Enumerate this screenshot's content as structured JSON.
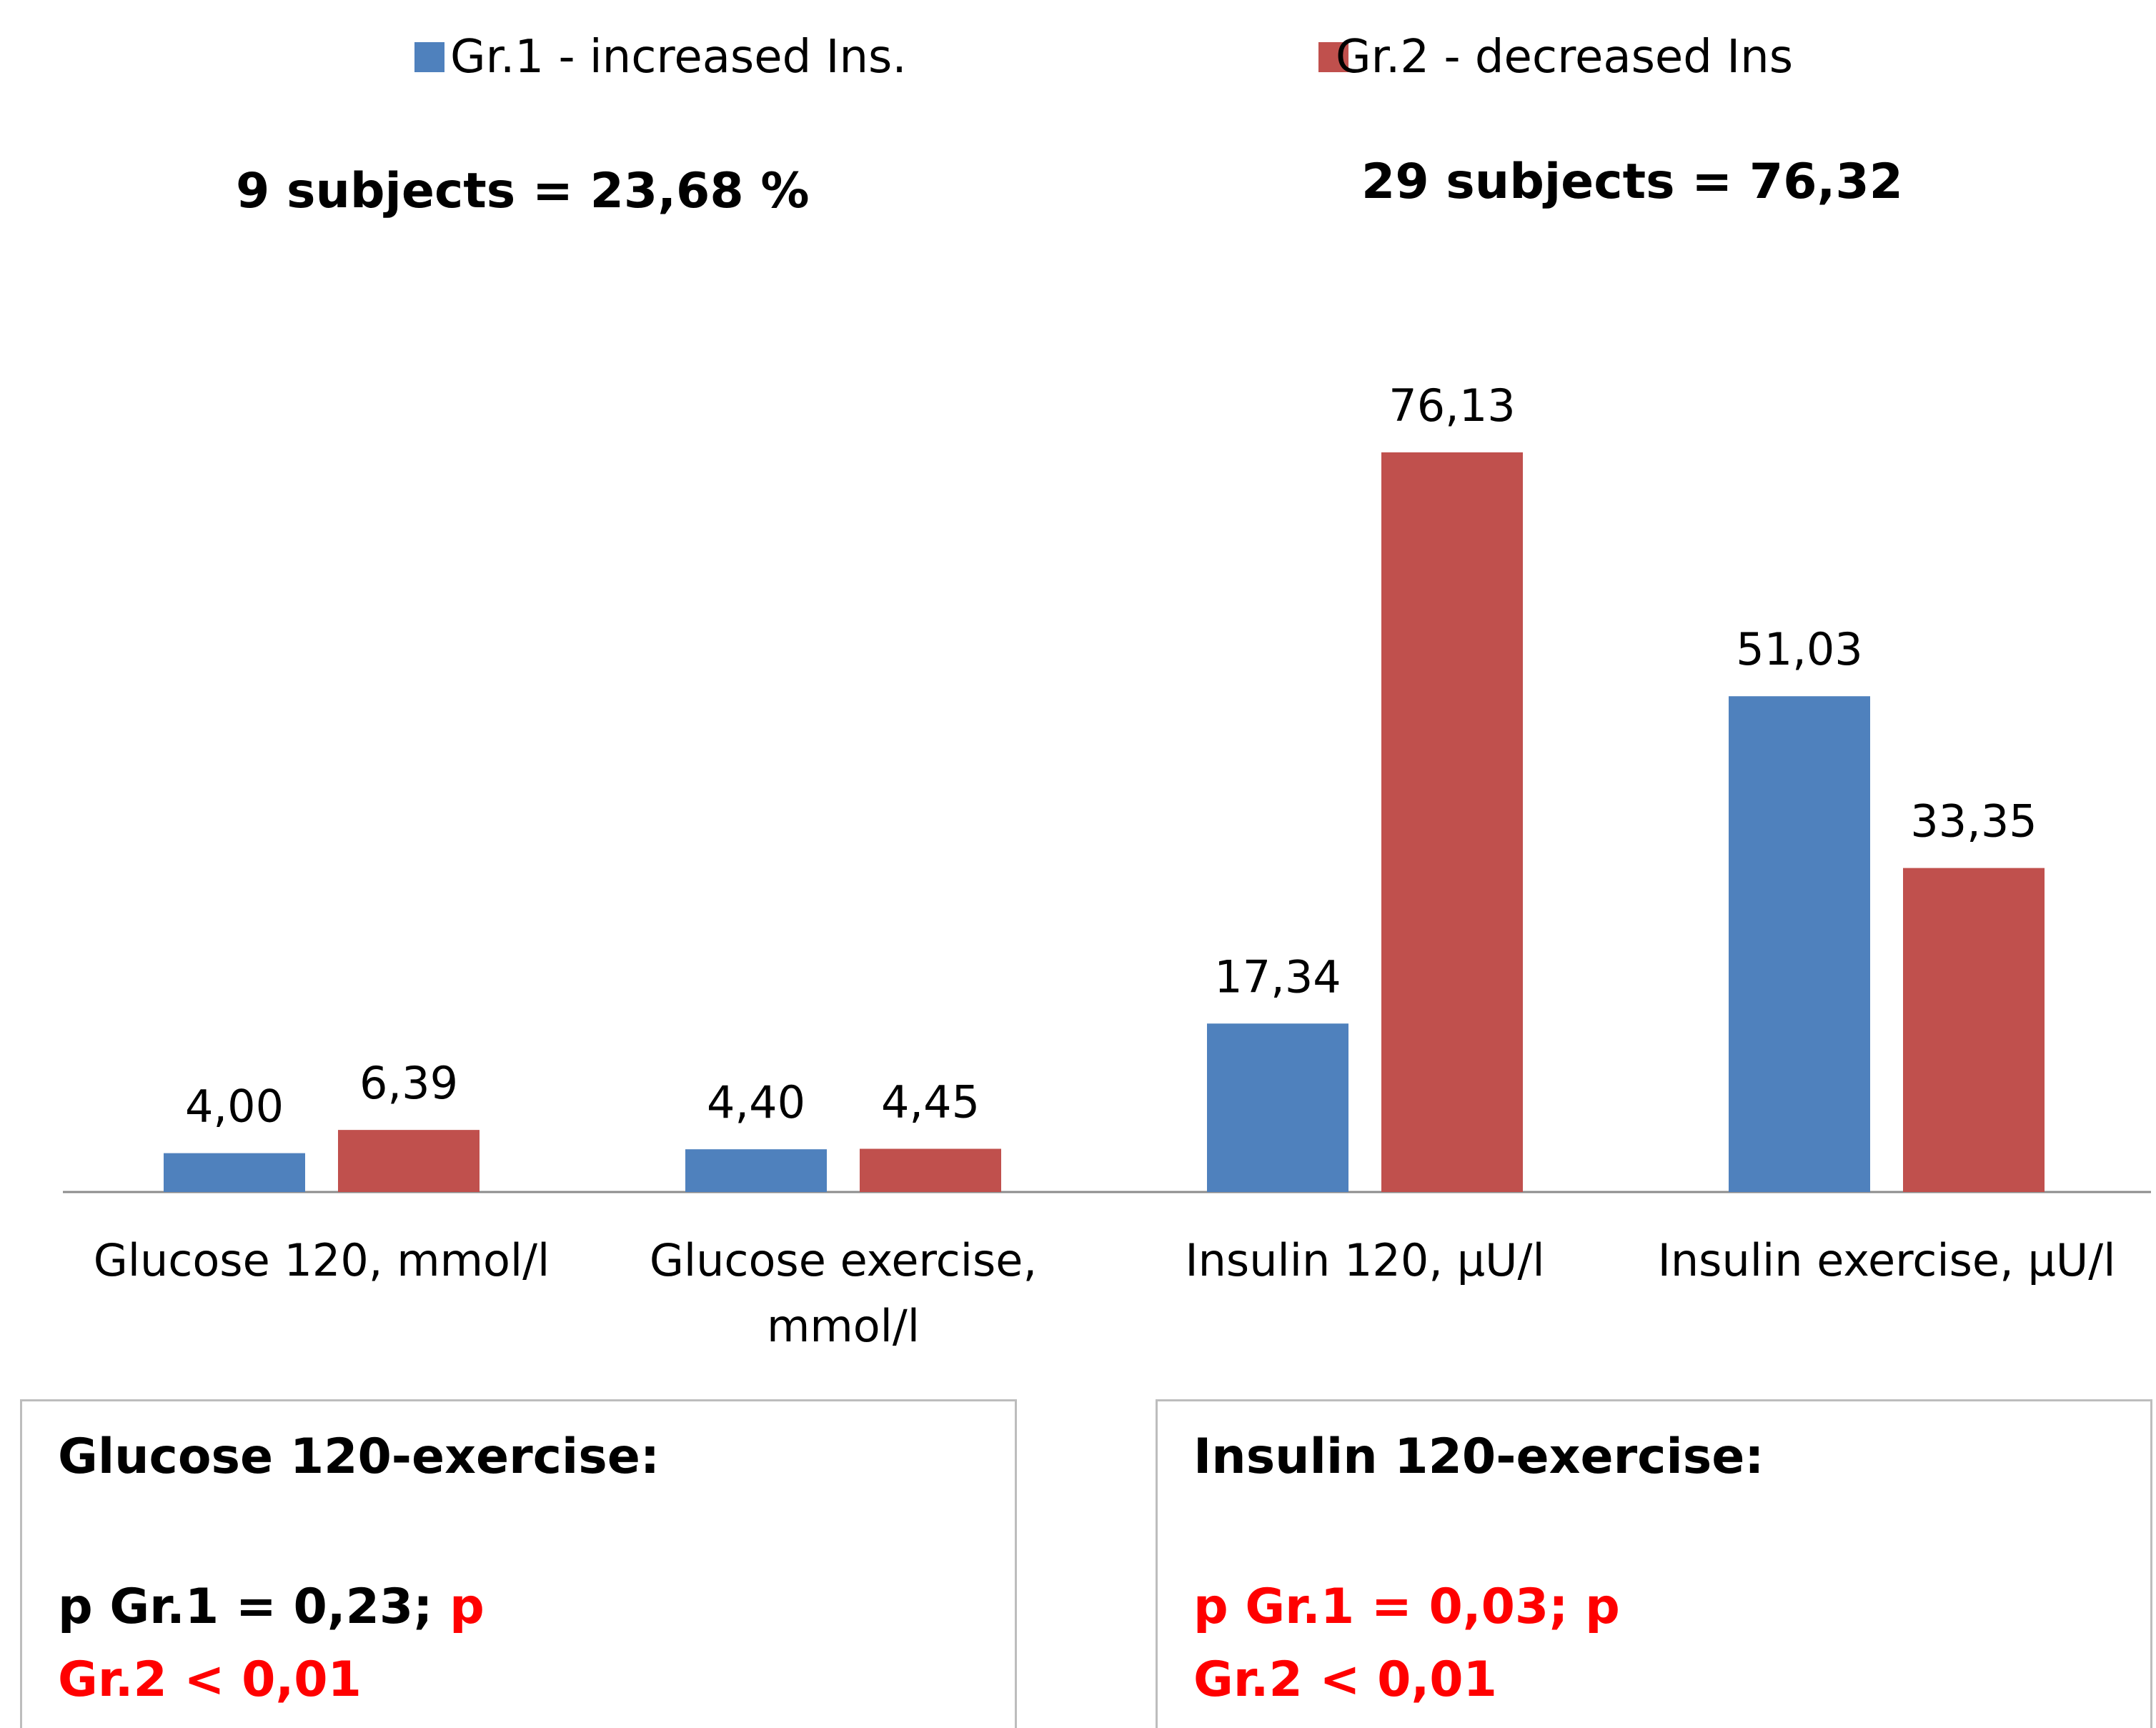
{
  "legend": [
    {
      "label": "Gr.1 - increased Ins.",
      "color": "#4f81bd"
    },
    {
      "label": "Gr.2 - decreased Ins",
      "color": "#c0504d"
    }
  ],
  "group_notes": {
    "gr1": "9 subjects = 23,68 %",
    "gr2": "29 subjects = 76,32"
  },
  "chart_data": {
    "type": "bar",
    "title": "",
    "xlabel": "",
    "ylabel": "",
    "categories": [
      [
        "Glucose 120, mmol/l"
      ],
      [
        "Glucose exercise,",
        "mmol/l"
      ],
      [
        "Insulin 120, μU/l"
      ],
      [
        "Insulin exercise, μU/l"
      ]
    ],
    "series": [
      {
        "name": "Gr.1 - increased Ins.",
        "color": "#4f81bd",
        "values": [
          4.0,
          4.4,
          17.34,
          51.03
        ],
        "labels": [
          "4,00",
          "4,40",
          "17,34",
          "51,03"
        ]
      },
      {
        "name": "Gr.2 - decreased Ins",
        "color": "#c0504d",
        "values": [
          6.39,
          4.45,
          76.13,
          33.35
        ],
        "labels": [
          "6,39",
          "4,45",
          "76,13",
          "33,35"
        ]
      }
    ],
    "grid": false,
    "legend_position": "top"
  },
  "stats": {
    "glucose": {
      "heading": "Glucose 120-exercise:",
      "p1": "p Gr.1 = 0,23;",
      "p2_a": "p",
      "p2_b": "Gr.2 < 0,01"
    },
    "insulin": {
      "heading": "Insulin 120-exercise:",
      "line1": "p Gr.1 = 0,03; p",
      "line2": "Gr.2 < 0,01"
    }
  }
}
